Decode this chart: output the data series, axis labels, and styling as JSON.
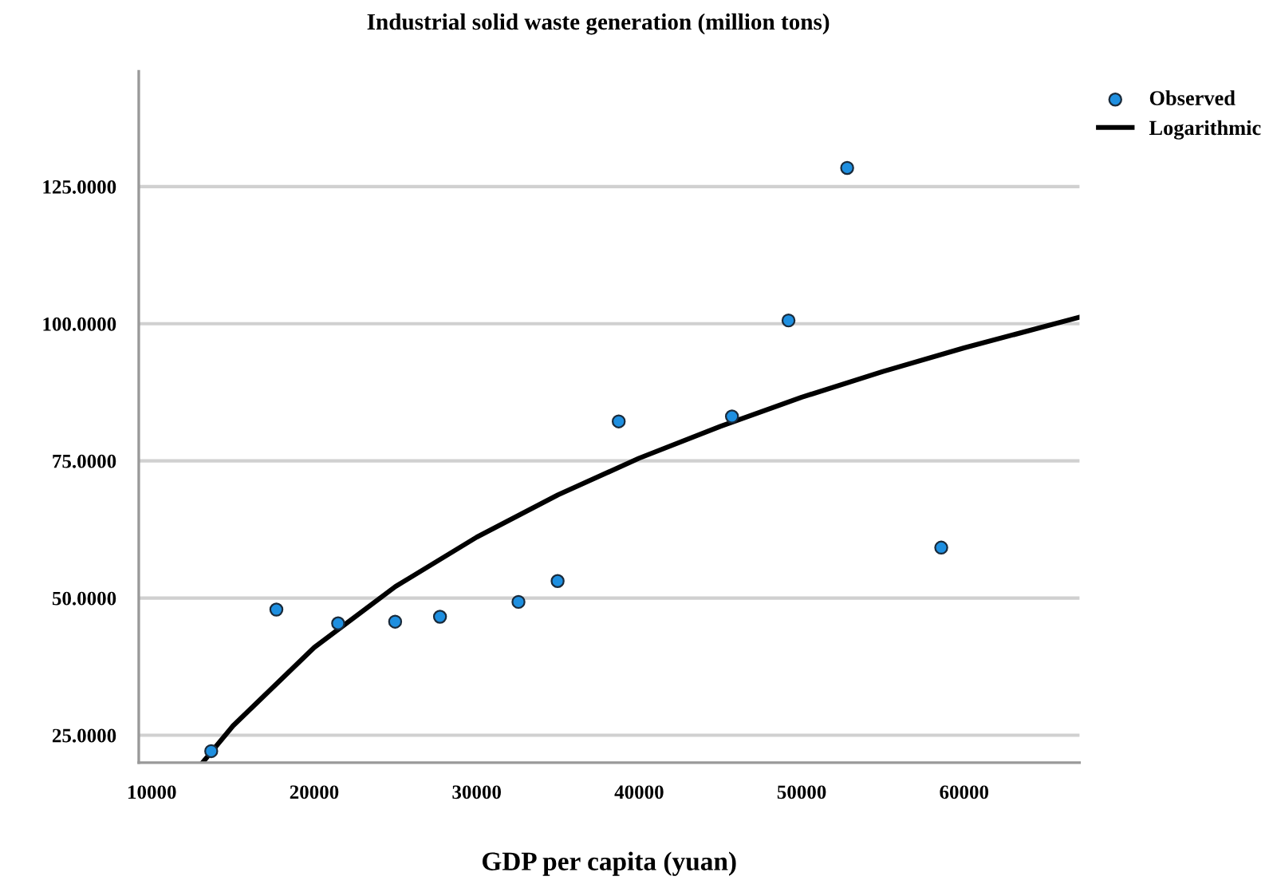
{
  "chart_data": {
    "type": "scatter",
    "title": "Industrial solid waste generation (million tons)",
    "xlabel": "GDP per capita (yuan)",
    "series": [
      {
        "name": "Observed",
        "marker": "circle",
        "color": "#1e8fe0",
        "x": [
          13660,
          17670,
          21470,
          24980,
          27740,
          32570,
          34980,
          38740,
          45710,
          49190,
          52800,
          58590
        ],
        "values": [
          22.1,
          47.9,
          45.4,
          45.7,
          46.6,
          49.3,
          53.1,
          82.2,
          83.1,
          100.6,
          128.4,
          59.2
        ]
      },
      {
        "name": "Logarithmic",
        "type": "line",
        "color": "#000000",
        "x": [
          13120,
          15000,
          20000,
          25000,
          30000,
          35000,
          40000,
          45000,
          50000,
          55000,
          60000,
          67100
        ],
        "values": [
          20,
          26.7,
          41.0,
          52.1,
          61.1,
          68.8,
          75.5,
          81.3,
          86.6,
          91.3,
          95.6,
          101.2
        ]
      }
    ],
    "xlim": [
      9200,
      67100
    ],
    "ylim": [
      20,
      146
    ],
    "xticks": [
      10000,
      20000,
      30000,
      40000,
      50000,
      60000
    ],
    "yticks": [
      {
        "value": 25,
        "label": "25.0000"
      },
      {
        "value": 50,
        "label": "50.0000"
      },
      {
        "value": 75,
        "label": "75.0000"
      },
      {
        "value": 100,
        "label": "100.0000"
      },
      {
        "value": 125,
        "label": "125.0000"
      }
    ],
    "grid": "y",
    "legend": "top right"
  }
}
